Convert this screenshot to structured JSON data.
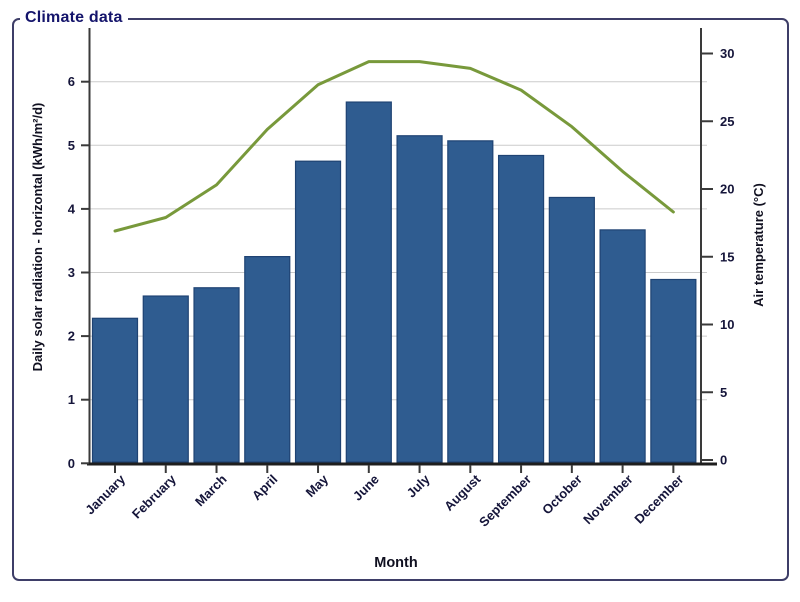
{
  "panel": {
    "title": "Climate data"
  },
  "chart_data": {
    "type": "bar",
    "subtype": "bar-and-line-dual-axis",
    "title": "Climate data",
    "categories": [
      "January",
      "February",
      "March",
      "April",
      "May",
      "June",
      "July",
      "August",
      "September",
      "October",
      "November",
      "December"
    ],
    "series": [
      {
        "name": "Daily solar radiation - horizontal",
        "type": "bar",
        "axis": "left",
        "color": "#2F5C90",
        "border_color": "#1F4373",
        "values": [
          2.28,
          2.63,
          2.76,
          3.25,
          4.75,
          5.68,
          5.15,
          5.07,
          4.84,
          4.18,
          3.67,
          2.89
        ]
      },
      {
        "name": "Air temperature",
        "type": "line",
        "axis": "right",
        "color": "#78993B",
        "values": [
          16.9,
          17.9,
          20.3,
          24.4,
          27.7,
          29.4,
          29.4,
          28.9,
          27.3,
          24.6,
          21.3,
          18.3
        ]
      }
    ],
    "left_axis": {
      "label": "Daily solar radiation - horizontal (kWh/m²/d)",
      "min": 0,
      "max": 6,
      "tick_step": 1,
      "ticks": [
        "0",
        "1",
        "2",
        "3",
        "4",
        "5",
        "6"
      ]
    },
    "right_axis": {
      "label": "Air temperature (°C)",
      "min": 0,
      "max": 30,
      "tick_step": 5,
      "ticks": [
        "0",
        "5",
        "10",
        "15",
        "20",
        "25",
        "30"
      ]
    },
    "x_axis": {
      "label": "Month",
      "tick_rotation": -45
    },
    "grid": "horizontal",
    "legend": "none",
    "colors": {
      "grid_line": "#CBCBCB",
      "axis_line": "#3A3A3A",
      "bottom_axis_line": "#1E1E1E",
      "tick_text": "#15153A",
      "axis_title_text": "#101020",
      "frame_border": "#3E3E68",
      "frame_title": "#14146B",
      "background": "#FFFFFF"
    }
  }
}
